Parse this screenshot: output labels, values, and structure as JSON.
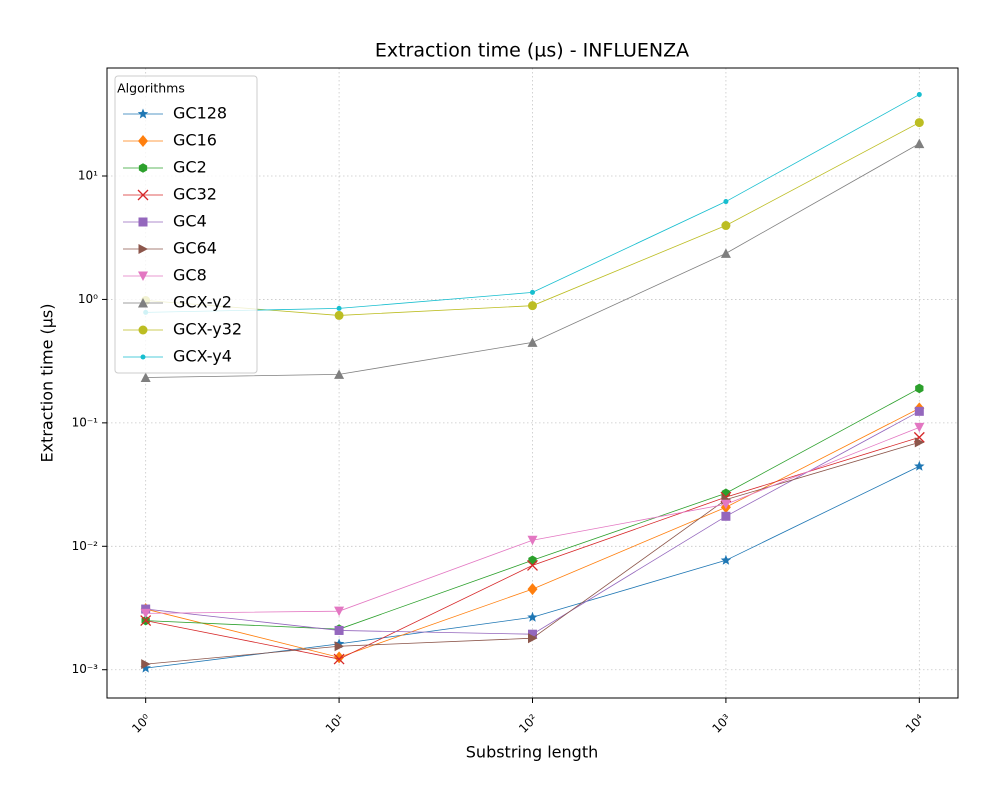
{
  "chart_data": {
    "type": "line",
    "title": "Extraction time (µs) - INFLUENZA",
    "x_label": "Substring length",
    "y_label": "Extraction time (µs)",
    "x": [
      1,
      10,
      100,
      1000,
      10000
    ],
    "xlog": true,
    "ylog": true,
    "grid": true,
    "xlim": [
      0.631,
      15849
    ],
    "ylim": [
      0.00059,
      75
    ],
    "xticks": [
      {
        "value": 1,
        "label": "10⁰"
      },
      {
        "value": 10,
        "label": "10¹"
      },
      {
        "value": 100,
        "label": "10²"
      },
      {
        "value": 1000,
        "label": "10³"
      },
      {
        "value": 10000,
        "label": "10⁴"
      }
    ],
    "yticks": [
      {
        "value": 0.001,
        "label": "10⁻³"
      },
      {
        "value": 0.01,
        "label": "10⁻²"
      },
      {
        "value": 0.1,
        "label": "10⁻¹"
      },
      {
        "value": 1,
        "label": "10⁰"
      },
      {
        "value": 10,
        "label": "10¹"
      }
    ],
    "legend": "upper left",
    "legend_title": "Algorithms",
    "series": [
      {
        "name": "GC128",
        "color": "#1f77b4",
        "marker": "star",
        "values": [
          0.00103,
          0.00162,
          0.00266,
          0.0077,
          0.0445
        ]
      },
      {
        "name": "GC16",
        "color": "#ff7f0e",
        "marker": "diamond",
        "values": [
          0.0031,
          0.00126,
          0.0045,
          0.0207,
          0.131
        ]
      },
      {
        "name": "GC2",
        "color": "#2ca02c",
        "marker": "hexagon",
        "values": [
          0.0025,
          0.00213,
          0.0077,
          0.0269,
          0.19
        ]
      },
      {
        "name": "GC32",
        "color": "#d62728",
        "marker": "x",
        "values": [
          0.0025,
          0.00122,
          0.007,
          0.025,
          0.0763
        ]
      },
      {
        "name": "GC4",
        "color": "#9467bd",
        "marker": "square",
        "values": [
          0.0031,
          0.00208,
          0.00194,
          0.0175,
          0.124
        ]
      },
      {
        "name": "GC64",
        "color": "#8c564b",
        "marker": "triangle-right",
        "values": [
          0.00111,
          0.00155,
          0.0018,
          0.0239,
          0.0695
        ]
      },
      {
        "name": "GC8",
        "color": "#e377c2",
        "marker": "triangle-down",
        "values": [
          0.00286,
          0.00298,
          0.0112,
          0.0219,
          0.092
        ]
      },
      {
        "name": "GCX-y2",
        "color": "#7f7f7f",
        "marker": "triangle-up",
        "values": [
          0.233,
          0.247,
          0.449,
          2.36,
          18.3
        ]
      },
      {
        "name": "GCX-y32",
        "color": "#bcbd22",
        "marker": "circle",
        "values": [
          0.98,
          0.742,
          0.89,
          3.97,
          27.1
        ]
      },
      {
        "name": "GCX-y4",
        "color": "#17becf",
        "marker": "point",
        "values": [
          0.785,
          0.846,
          1.14,
          6.21,
          45.7
        ]
      }
    ]
  }
}
